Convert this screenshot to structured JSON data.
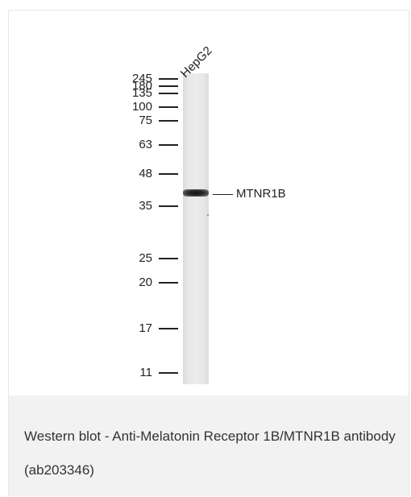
{
  "blot": {
    "lane_label": "HepG2",
    "target_label": "MTNR1B",
    "markers": [
      {
        "label": "245",
        "kda": 245
      },
      {
        "label": "180",
        "kda": 180
      },
      {
        "label": "135",
        "kda": 135
      },
      {
        "label": "100",
        "kda": 100
      },
      {
        "label": "75",
        "kda": 75
      },
      {
        "label": "63",
        "kda": 63
      },
      {
        "label": "48",
        "kda": 48
      },
      {
        "label": "35",
        "kda": 35
      },
      {
        "label": "25",
        "kda": 25
      },
      {
        "label": "20",
        "kda": 20
      },
      {
        "label": "17",
        "kda": 17
      },
      {
        "label": "11",
        "kda": 11
      }
    ]
  },
  "caption": {
    "text": "Western blot - Anti-Melatonin Receptor 1B/MTNR1B antibody (ab203346)"
  }
}
